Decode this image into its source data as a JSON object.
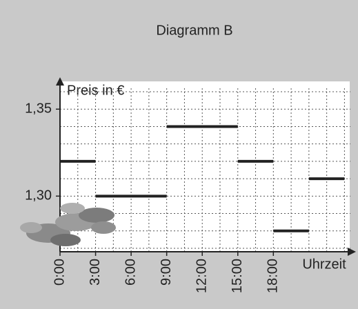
{
  "chart_data": {
    "type": "step",
    "title": "Diagramm B",
    "y_label": "Preis in €",
    "x_label": "Uhrzeit",
    "segments": [
      {
        "start": 0,
        "end": 3,
        "value": 1.32
      },
      {
        "start": 3,
        "end": 9,
        "value": 1.3
      },
      {
        "start": 9,
        "end": 15,
        "value": 1.34
      },
      {
        "start": 15,
        "end": 18,
        "value": 1.32
      },
      {
        "start": 18,
        "end": 21,
        "value": 1.28
      },
      {
        "start": 21,
        "end": 24,
        "value": 1.31
      }
    ],
    "color": "#222222",
    "xlim": [
      0,
      24.5
    ],
    "ylim": [
      1.268,
      1.362
    ],
    "xticks": [
      {
        "value": 0,
        "label": "0:00"
      },
      {
        "value": 3,
        "label": "3:00"
      },
      {
        "value": 6,
        "label": "6:00"
      },
      {
        "value": 9,
        "label": "9:00"
      },
      {
        "value": 12,
        "label": "12:00"
      },
      {
        "value": 15,
        "label": "15:00"
      },
      {
        "value": 18,
        "label": "18:00"
      }
    ],
    "yticks": [
      {
        "value": 1.3,
        "label": "1,30"
      },
      {
        "value": 1.35,
        "label": "1,35"
      }
    ],
    "grid": true,
    "grid_step_x": 1.5,
    "grid_step_y": 0.01
  }
}
